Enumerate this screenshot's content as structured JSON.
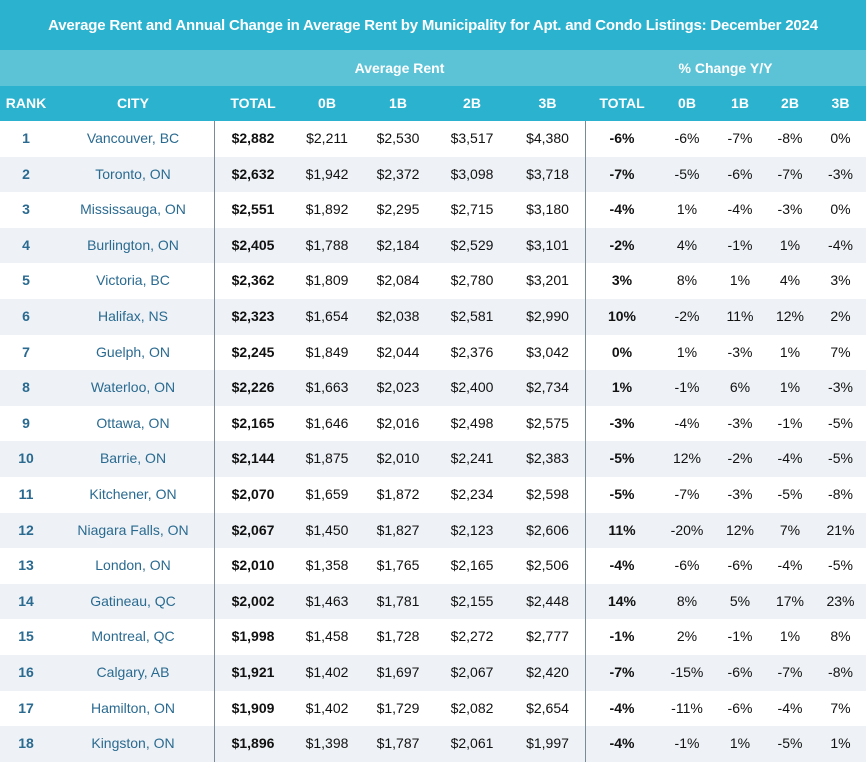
{
  "title": "Average Rent and Annual Change in Average Rent by Municipality for Apt. and Condo Listings: December 2024",
  "group_headers": {
    "avg_rent": "Average Rent",
    "pct_change": "% Change Y/Y"
  },
  "columns": [
    "RANK",
    "CITY",
    "TOTAL",
    "0B",
    "1B",
    "2B",
    "3B",
    "TOTAL",
    "0B",
    "1B",
    "2B",
    "3B"
  ],
  "chart_data": {
    "type": "table",
    "title": "Average Rent and Annual Change in Average Rent by Municipality for Apt. and Condo Listings: December 2024",
    "column_groups": [
      {
        "name": "Average Rent",
        "columns": [
          "TOTAL",
          "0B",
          "1B",
          "2B",
          "3B"
        ]
      },
      {
        "name": "% Change Y/Y",
        "columns": [
          "TOTAL",
          "0B",
          "1B",
          "2B",
          "3B"
        ]
      }
    ],
    "rows": [
      [
        "1",
        "Vancouver, BC",
        "$2,882",
        "$2,211",
        "$2,530",
        "$3,517",
        "$4,380",
        "-6%",
        "-6%",
        "-7%",
        "-8%",
        "0%"
      ],
      [
        "2",
        "Toronto, ON",
        "$2,632",
        "$1,942",
        "$2,372",
        "$3,098",
        "$3,718",
        "-7%",
        "-5%",
        "-6%",
        "-7%",
        "-3%"
      ],
      [
        "3",
        "Mississauga, ON",
        "$2,551",
        "$1,892",
        "$2,295",
        "$2,715",
        "$3,180",
        "-4%",
        "1%",
        "-4%",
        "-3%",
        "0%"
      ],
      [
        "4",
        "Burlington, ON",
        "$2,405",
        "$1,788",
        "$2,184",
        "$2,529",
        "$3,101",
        "-2%",
        "4%",
        "-1%",
        "1%",
        "-4%"
      ],
      [
        "5",
        "Victoria, BC",
        "$2,362",
        "$1,809",
        "$2,084",
        "$2,780",
        "$3,201",
        "3%",
        "8%",
        "1%",
        "4%",
        "3%"
      ],
      [
        "6",
        "Halifax, NS",
        "$2,323",
        "$1,654",
        "$2,038",
        "$2,581",
        "$2,990",
        "10%",
        "-2%",
        "11%",
        "12%",
        "2%"
      ],
      [
        "7",
        "Guelph, ON",
        "$2,245",
        "$1,849",
        "$2,044",
        "$2,376",
        "$3,042",
        "0%",
        "1%",
        "-3%",
        "1%",
        "7%"
      ],
      [
        "8",
        "Waterloo, ON",
        "$2,226",
        "$1,663",
        "$2,023",
        "$2,400",
        "$2,734",
        "1%",
        "-1%",
        "6%",
        "1%",
        "-3%"
      ],
      [
        "9",
        "Ottawa, ON",
        "$2,165",
        "$1,646",
        "$2,016",
        "$2,498",
        "$2,575",
        "-3%",
        "-4%",
        "-3%",
        "-1%",
        "-5%"
      ],
      [
        "10",
        "Barrie, ON",
        "$2,144",
        "$1,875",
        "$2,010",
        "$2,241",
        "$2,383",
        "-5%",
        "12%",
        "-2%",
        "-4%",
        "-5%"
      ],
      [
        "11",
        "Kitchener, ON",
        "$2,070",
        "$1,659",
        "$1,872",
        "$2,234",
        "$2,598",
        "-5%",
        "-7%",
        "-3%",
        "-5%",
        "-8%"
      ],
      [
        "12",
        "Niagara Falls, ON",
        "$2,067",
        "$1,450",
        "$1,827",
        "$2,123",
        "$2,606",
        "11%",
        "-20%",
        "12%",
        "7%",
        "21%"
      ],
      [
        "13",
        "London, ON",
        "$2,010",
        "$1,358",
        "$1,765",
        "$2,165",
        "$2,506",
        "-4%",
        "-6%",
        "-6%",
        "-4%",
        "-5%"
      ],
      [
        "14",
        "Gatineau, QC",
        "$2,002",
        "$1,463",
        "$1,781",
        "$2,155",
        "$2,448",
        "14%",
        "8%",
        "5%",
        "17%",
        "23%"
      ],
      [
        "15",
        "Montreal, QC",
        "$1,998",
        "$1,458",
        "$1,728",
        "$2,272",
        "$2,777",
        "-1%",
        "2%",
        "-1%",
        "1%",
        "8%"
      ],
      [
        "16",
        "Calgary, AB",
        "$1,921",
        "$1,402",
        "$1,697",
        "$2,067",
        "$2,420",
        "-7%",
        "-15%",
        "-6%",
        "-7%",
        "-8%"
      ],
      [
        "17",
        "Hamilton, ON",
        "$1,909",
        "$1,402",
        "$1,729",
        "$2,082",
        "$2,654",
        "-4%",
        "-11%",
        "-6%",
        "-4%",
        "7%"
      ],
      [
        "18",
        "Kingston, ON",
        "$1,896",
        "$1,398",
        "$1,787",
        "$2,061",
        "$1,997",
        "-4%",
        "-1%",
        "1%",
        "-5%",
        "1%"
      ]
    ]
  },
  "colors": {
    "header_dark": "#2bb2cf",
    "header_light": "#5cc3d7",
    "row_alt": "#eef2f6",
    "rank_city_text": "#2a6a90",
    "divider": "#7a8a96"
  }
}
